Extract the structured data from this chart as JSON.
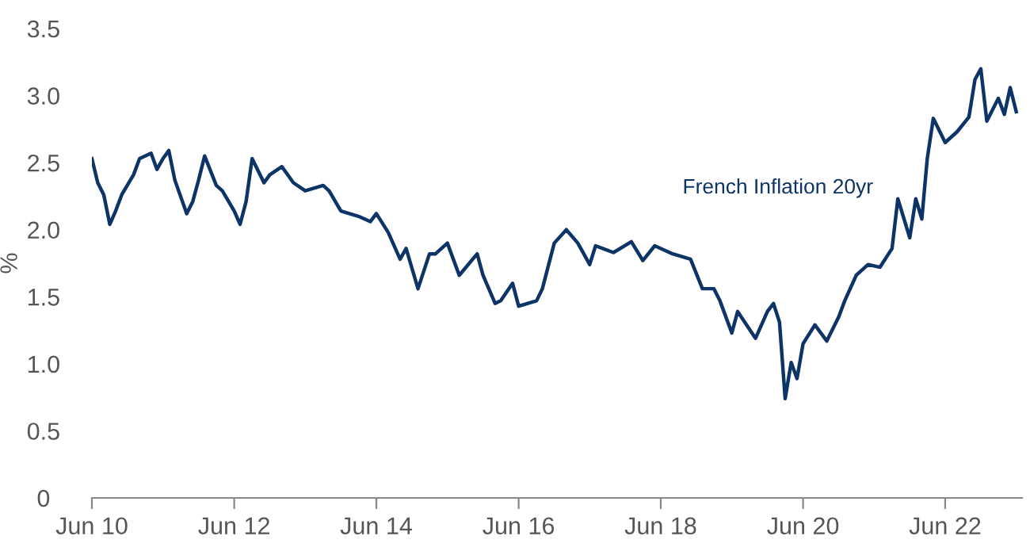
{
  "chart_data": {
    "type": "line",
    "ylabel": "%",
    "x": [
      "2010-06",
      "2010-07",
      "2010-08",
      "2010-09",
      "2010-10",
      "2010-11",
      "2011-01",
      "2011-02",
      "2011-04",
      "2011-05",
      "2011-06",
      "2011-07",
      "2011-08",
      "2011-10",
      "2011-11",
      "2011-12",
      "2012-01",
      "2012-03",
      "2012-04",
      "2012-06",
      "2012-07",
      "2012-08",
      "2012-09",
      "2012-11",
      "2012-12",
      "2013-02",
      "2013-04",
      "2013-06",
      "2013-09",
      "2013-10",
      "2013-12",
      "2014-03",
      "2014-05",
      "2014-06",
      "2014-08",
      "2014-10",
      "2014-11",
      "2015-01",
      "2015-03",
      "2015-04",
      "2015-06",
      "2015-08",
      "2015-11",
      "2015-12",
      "2016-02",
      "2016-03",
      "2016-05",
      "2016-06",
      "2016-09",
      "2016-10",
      "2016-12",
      "2017-02",
      "2017-04",
      "2017-06",
      "2017-07",
      "2017-10",
      "2018-01",
      "2018-03",
      "2018-05",
      "2018-08",
      "2018-11",
      "2019-01",
      "2019-03",
      "2019-04",
      "2019-06",
      "2019-07",
      "2019-10",
      "2019-12",
      "2020-01",
      "2020-02",
      "2020-03",
      "2020-04",
      "2020-05",
      "2020-06",
      "2020-08",
      "2020-10",
      "2020-12",
      "2021-01",
      "2021-03",
      "2021-05",
      "2021-07",
      "2021-09",
      "2021-10",
      "2021-12",
      "2022-01",
      "2022-02",
      "2022-03",
      "2022-04",
      "2022-06",
      "2022-08",
      "2022-10",
      "2022-11",
      "2022-12",
      "2023-01",
      "2023-03",
      "2023-04",
      "2023-05",
      "2023-06"
    ],
    "series": [
      {
        "name": "French Inflation 20yr",
        "color": "#0d3466",
        "values": [
          2.53,
          2.35,
          2.26,
          2.04,
          2.14,
          2.26,
          2.41,
          2.53,
          2.57,
          2.45,
          2.53,
          2.59,
          2.37,
          2.12,
          2.21,
          2.37,
          2.55,
          2.33,
          2.29,
          2.14,
          2.04,
          2.21,
          2.53,
          2.35,
          2.41,
          2.47,
          2.35,
          2.29,
          2.33,
          2.29,
          2.14,
          2.1,
          2.06,
          2.12,
          1.98,
          1.78,
          1.86,
          1.56,
          1.82,
          1.82,
          1.9,
          1.66,
          1.82,
          1.66,
          1.45,
          1.47,
          1.6,
          1.43,
          1.47,
          1.56,
          1.9,
          2.0,
          1.9,
          1.74,
          1.88,
          1.83,
          1.91,
          1.77,
          1.88,
          1.82,
          1.78,
          1.56,
          1.56,
          1.47,
          1.23,
          1.39,
          1.19,
          1.39,
          1.45,
          1.31,
          0.74,
          1.01,
          0.89,
          1.15,
          1.29,
          1.17,
          1.35,
          1.47,
          1.66,
          1.74,
          1.72,
          1.86,
          2.23,
          1.94,
          2.23,
          2.08,
          2.53,
          2.83,
          2.65,
          2.73,
          2.84,
          3.12,
          3.2,
          2.81,
          2.98,
          2.86,
          3.06,
          2.88
        ]
      }
    ],
    "xlim": [
      "2010-06-01",
      "2023-07-01"
    ],
    "xticks": [
      {
        "value": "2010-06-01",
        "label": "Jun 10"
      },
      {
        "value": "2012-06-01",
        "label": "Jun 12"
      },
      {
        "value": "2014-06-01",
        "label": "Jun 14"
      },
      {
        "value": "2016-06-01",
        "label": "Jun 16"
      },
      {
        "value": "2018-06-01",
        "label": "Jun 18"
      },
      {
        "value": "2020-06-01",
        "label": "Jun 20"
      },
      {
        "value": "2022-06-01",
        "label": "Jun 22"
      }
    ],
    "ylim": [
      0,
      3.5
    ],
    "yticks": [
      {
        "value": 0,
        "label": "0"
      },
      {
        "value": 0.5,
        "label": "0.5"
      },
      {
        "value": 1,
        "label": "1.0"
      },
      {
        "value": 1.5,
        "label": "1.5"
      },
      {
        "value": 2,
        "label": "2.0"
      },
      {
        "value": 2.5,
        "label": "2.5"
      },
      {
        "value": 3,
        "label": "3.0"
      },
      {
        "value": 3.5,
        "label": "3.5"
      }
    ],
    "grid": false,
    "legend": false
  }
}
